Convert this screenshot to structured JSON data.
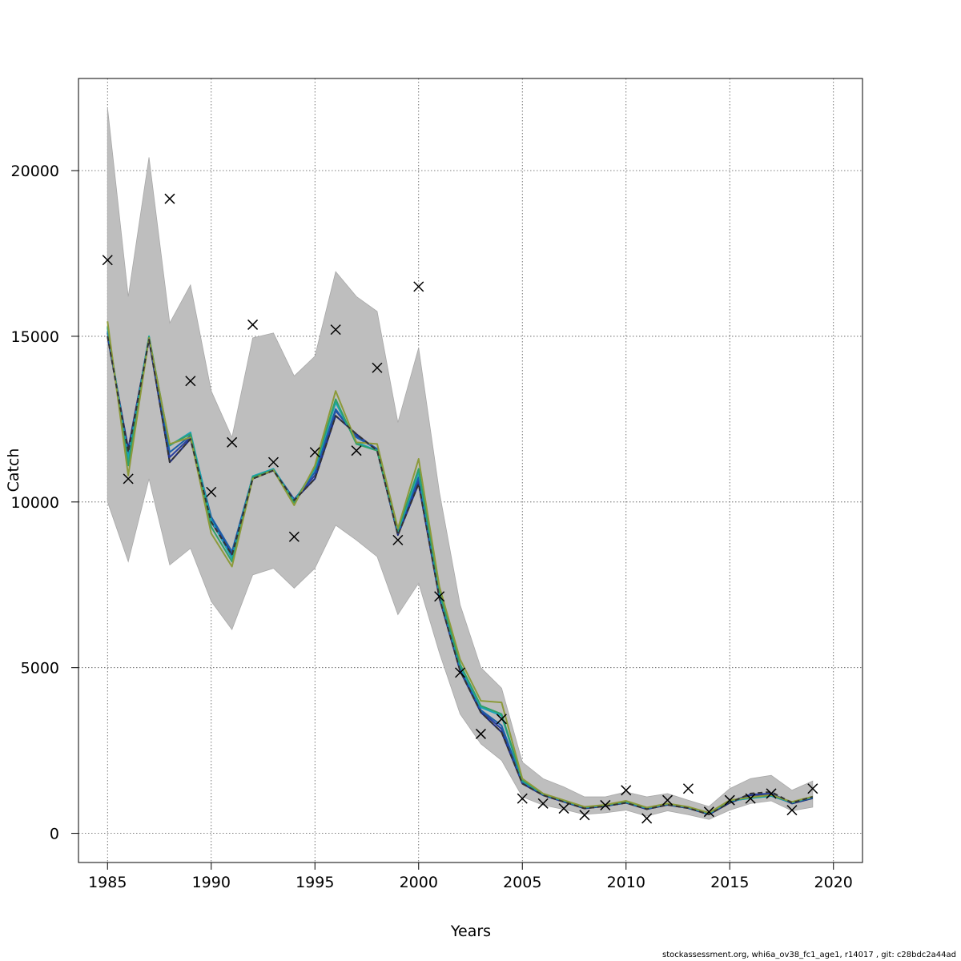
{
  "chart_data": {
    "type": "line",
    "xlabel": "Years",
    "ylabel": "Catch",
    "xlim": [
      1983.6,
      2021.4
    ],
    "ylim": [
      -880,
      22780
    ],
    "xticks": [
      1985,
      1990,
      1995,
      2000,
      2005,
      2010,
      2015,
      2020
    ],
    "yticks": [
      0,
      5000,
      10000,
      15000,
      20000
    ],
    "grid": true,
    "x": [
      1985,
      1986,
      1987,
      1988,
      1989,
      1990,
      1991,
      1992,
      1993,
      1994,
      1995,
      1996,
      1997,
      1998,
      1999,
      2000,
      2001,
      2002,
      2003,
      2004,
      2005,
      2006,
      2007,
      2008,
      2009,
      2010,
      2011,
      2012,
      2013,
      2014,
      2015,
      2016,
      2017,
      2018,
      2019
    ],
    "band": {
      "color": "#bebebe",
      "lower": [
        10000,
        8200,
        10700,
        8100,
        8600,
        7000,
        6150,
        7800,
        8000,
        7400,
        8000,
        9300,
        8850,
        8350,
        6600,
        7550,
        5450,
        3600,
        2700,
        2200,
        1100,
        850,
        720,
        570,
        620,
        700,
        520,
        680,
        560,
        420,
        700,
        900,
        980,
        680,
        790
      ],
      "upper": [
        21900,
        16200,
        20400,
        15400,
        16550,
        13350,
        11950,
        14950,
        15100,
        13800,
        14400,
        16950,
        16200,
        15750,
        12400,
        14650,
        10300,
        6900,
        5000,
        4380,
        2150,
        1650,
        1400,
        1100,
        1100,
        1250,
        1100,
        1200,
        1000,
        810,
        1350,
        1650,
        1750,
        1300,
        1580
      ]
    },
    "series": [
      {
        "color": "#1e2a78",
        "values": [
          15000,
          11600,
          14900,
          11200,
          11900,
          9400,
          8400,
          10700,
          10950,
          10050,
          10700,
          12600,
          12050,
          11550,
          9000,
          10550,
          7100,
          4900,
          3650,
          3050,
          1500,
          1150,
          950,
          750,
          820,
          920,
          730,
          860,
          760,
          570,
          920,
          1150,
          1180,
          900,
          1060
        ]
      },
      {
        "color": "#2a3fa0",
        "values": [
          15100,
          11500,
          14950,
          11350,
          11950,
          9500,
          8450,
          10750,
          10980,
          10080,
          10800,
          12750,
          12000,
          11600,
          9050,
          10650,
          7150,
          4950,
          3700,
          3150,
          1530,
          1160,
          960,
          760,
          830,
          930,
          740,
          870,
          770,
          580,
          950,
          1170,
          1200,
          920,
          1080
        ]
      },
      {
        "color": "#1b5fa8",
        "values": [
          15150,
          11400,
          14980,
          11500,
          12000,
          9550,
          8500,
          10760,
          10990,
          10060,
          10900,
          12800,
          11950,
          11600,
          9100,
          10750,
          7180,
          4980,
          3720,
          3250,
          1550,
          1170,
          970,
          770,
          840,
          940,
          750,
          880,
          780,
          590,
          970,
          1070,
          1130,
          920,
          1080
        ]
      },
      {
        "color": "#1aa3b8",
        "values": [
          15250,
          11300,
          15000,
          11700,
          12100,
          9450,
          8300,
          10780,
          11000,
          10020,
          11000,
          13000,
          11800,
          11550,
          9100,
          10900,
          7250,
          5050,
          3800,
          3550,
          1580,
          1180,
          980,
          780,
          845,
          945,
          760,
          885,
          785,
          600,
          980,
          1060,
          1130,
          930,
          1090
        ]
      },
      {
        "color": "#2ea06a",
        "values": [
          15300,
          11100,
          14980,
          11720,
          12050,
          9250,
          8200,
          10750,
          10970,
          9980,
          11050,
          13100,
          11750,
          11550,
          9150,
          11000,
          7300,
          5100,
          3850,
          3600,
          1600,
          1190,
          990,
          790,
          850,
          960,
          770,
          890,
          790,
          610,
          990,
          1080,
          1150,
          940,
          1100
        ]
      },
      {
        "color": "#8c9a3a",
        "values": [
          15450,
          10800,
          14950,
          11750,
          11950,
          9050,
          8050,
          10700,
          10960,
          9900,
          11100,
          13350,
          11800,
          11750,
          9200,
          11300,
          7450,
          5250,
          4000,
          3950,
          1650,
          1200,
          1000,
          800,
          860,
          980,
          780,
          900,
          800,
          620,
          1000,
          1090,
          1160,
          950,
          1110
        ]
      },
      {
        "color": "#333333",
        "dashed": true,
        "values": [
          15000,
          11500,
          14900,
          11200,
          11900,
          9400,
          8400,
          10700,
          10950,
          10050,
          10700,
          12600,
          12050,
          11550,
          9000,
          10550,
          7100,
          4900,
          3650,
          3050,
          1500,
          1150,
          950,
          750,
          820,
          920,
          730,
          860,
          760,
          570,
          920,
          1200,
          1250,
          920,
          1100
        ]
      }
    ],
    "observed": {
      "marker": "x",
      "values": [
        17300,
        10700,
        null,
        19150,
        13650,
        10300,
        11800,
        15350,
        11200,
        8950,
        11500,
        15200,
        11550,
        14050,
        8850,
        16500,
        7150,
        4850,
        3000,
        3450,
        1050,
        900,
        750,
        550,
        850,
        1300,
        450,
        1000,
        1350,
        650,
        1000,
        1050,
        1200,
        700,
        1350
      ]
    }
  },
  "footer": {
    "text": "stockassessment.org, whi6a_ov38_fc1_age1, r14017 , git: c28bdc2a44ad"
  }
}
